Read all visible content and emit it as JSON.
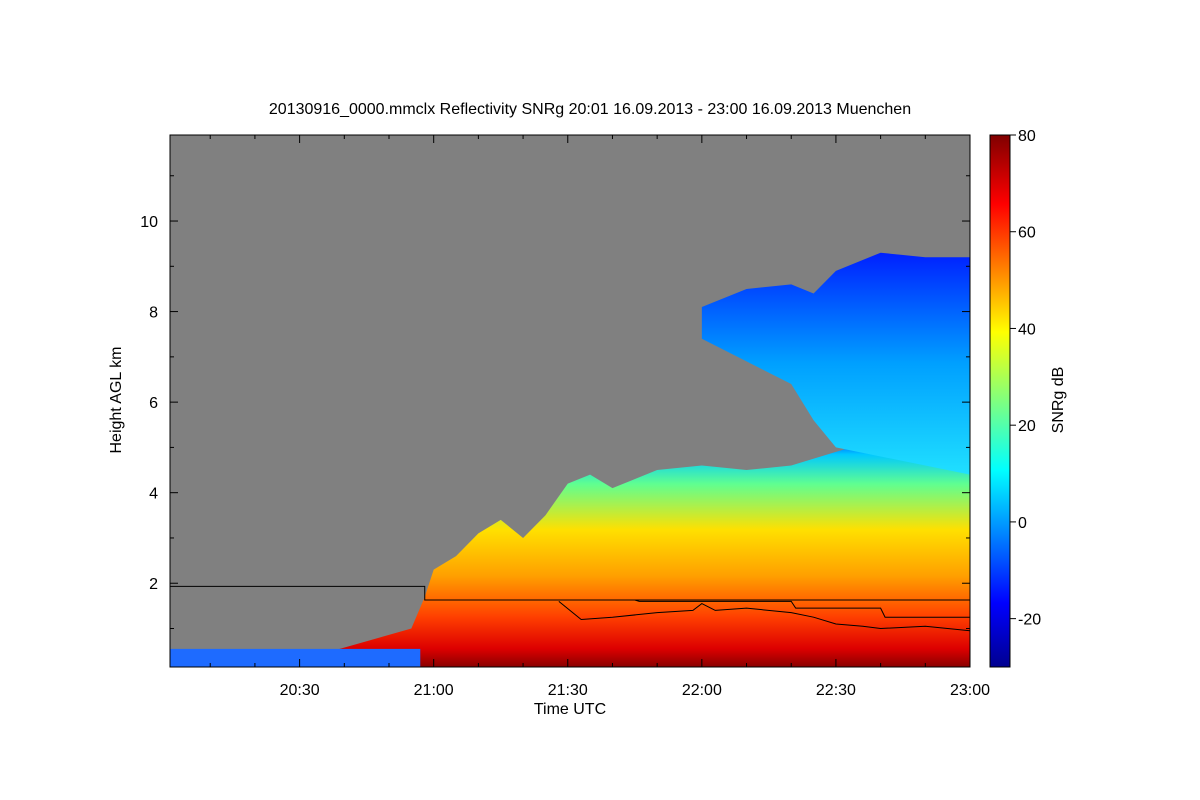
{
  "chart_data": {
    "type": "heatmap",
    "title": "20130916_0000.mmclx Reflectivity SNRg   20:01 16.09.2013 - 23:00 16.09.2013 Muenchen",
    "xlabel": "Time UTC",
    "ylabel": "Height AGL km",
    "colorbar_label": "SNRg dB",
    "x_ticks": [
      "20:30",
      "21:00",
      "21:30",
      "22:00",
      "22:30",
      "23:00"
    ],
    "x_tick_values": [
      30,
      60,
      90,
      120,
      150,
      180
    ],
    "xlim": [
      1,
      180
    ],
    "y_ticks": [
      "2",
      "4",
      "6",
      "8",
      "10"
    ],
    "y_tick_values": [
      2,
      4,
      6,
      8,
      10
    ],
    "ylim": [
      0.15,
      11.9
    ],
    "colorbar_ticks": [
      "-20",
      "0",
      "20",
      "40",
      "60",
      "80"
    ],
    "colorbar_tick_values": [
      -20,
      0,
      20,
      40,
      60,
      80
    ],
    "colorbar_range": [
      -30,
      80
    ],
    "colormap": "jet",
    "no_data_color": "#808080",
    "echo_top_km": {
      "minutes": [
        1,
        30,
        55,
        58,
        60,
        65,
        70,
        75,
        80,
        85,
        90,
        95,
        100,
        110,
        120,
        130,
        140,
        150,
        160,
        170,
        180
      ],
      "heights": [
        0.2,
        0.3,
        1.0,
        1.7,
        2.3,
        2.6,
        3.1,
        3.4,
        3.0,
        3.5,
        4.2,
        4.4,
        4.1,
        4.5,
        4.6,
        4.5,
        4.6,
        4.9,
        5.2,
        5.0,
        4.8
      ]
    },
    "upper_layer_km": {
      "minutes": [
        120,
        130,
        140,
        145,
        150,
        160,
        170,
        180
      ],
      "base": [
        7.4,
        6.9,
        6.4,
        5.6,
        5.0,
        4.8,
        4.6,
        4.4
      ],
      "top": [
        8.1,
        8.5,
        8.6,
        8.4,
        8.9,
        9.3,
        9.2,
        9.2
      ]
    },
    "lines": [
      {
        "minutes": [
          1,
          58,
          58,
          180
        ],
        "heights": [
          1.93,
          1.93,
          1.63,
          1.63
        ]
      },
      {
        "minutes": [
          88,
          93,
          100,
          110,
          118,
          120,
          123,
          130,
          140,
          145,
          150,
          156,
          160,
          170,
          180
        ],
        "heights": [
          1.6,
          1.2,
          1.25,
          1.35,
          1.4,
          1.55,
          1.4,
          1.45,
          1.35,
          1.25,
          1.1,
          1.05,
          1.0,
          1.05,
          0.95
        ]
      },
      {
        "minutes": [
          88,
          105,
          106,
          140,
          141,
          160,
          161,
          180
        ],
        "heights": [
          1.63,
          1.63,
          1.6,
          1.6,
          1.45,
          1.45,
          1.25,
          1.25
        ]
      }
    ]
  }
}
